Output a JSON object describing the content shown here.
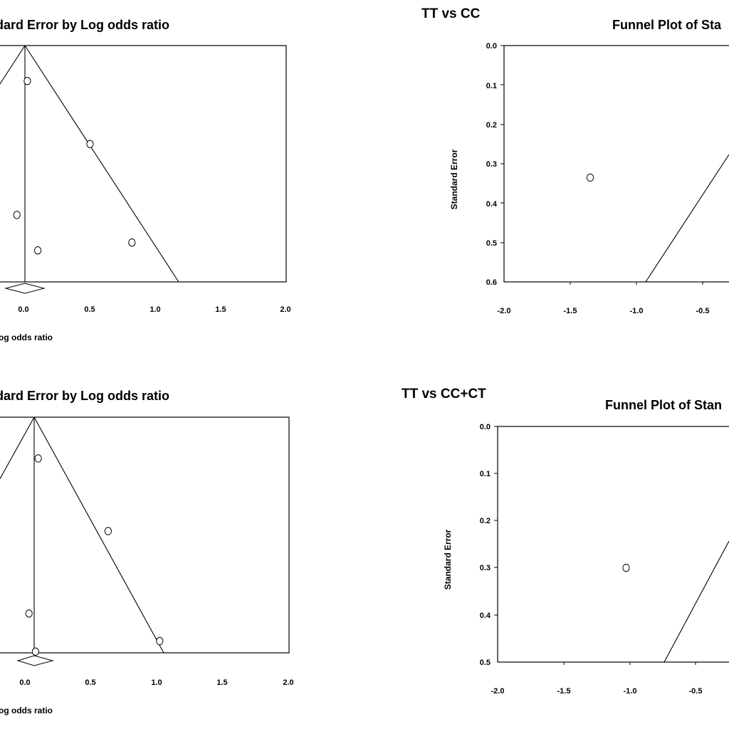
{
  "chart_data": [
    {
      "type": "scatter",
      "title": "dard Error by Log odds ratio",
      "xlabel": "og odds ratio",
      "ylabel": "",
      "xlim": [
        -0.2,
        2.0
      ],
      "ylim": [
        0.6,
        0.0
      ],
      "x_ticks": [
        "0.0",
        "0.5",
        "1.0",
        "1.5",
        "2.0"
      ],
      "y_ticks": [],
      "pooled_log_or": 0.0,
      "points": [
        {
          "x": 0.02,
          "y": 0.09
        },
        {
          "x": 0.5,
          "y": 0.25
        },
        {
          "x": -0.06,
          "y": 0.43
        },
        {
          "x": 0.82,
          "y": 0.5
        },
        {
          "x": 0.1,
          "y": 0.52
        }
      ]
    },
    {
      "type": "scatter",
      "heading": "TT vs CC",
      "title": "Funnel Plot of Sta",
      "xlabel": "",
      "ylabel": "Standard Error",
      "xlim": [
        -2.0,
        -0.26
      ],
      "ylim": [
        0.6,
        0.0
      ],
      "x_ticks": [
        "-2.0",
        "-1.5",
        "-1.0",
        "-0.5"
      ],
      "y_ticks": [
        "0.0",
        "0.1",
        "0.2",
        "0.3",
        "0.4",
        "0.5",
        "0.6"
      ],
      "points": [
        {
          "x": -1.35,
          "y": 0.335
        }
      ]
    },
    {
      "type": "scatter",
      "title": "dard Error by Log odds ratio",
      "xlabel": "og odds ratio",
      "ylabel": "",
      "xlim": [
        -0.2,
        2.0
      ],
      "ylim": [
        0.6,
        0.0
      ],
      "x_ticks": [
        "0.0",
        "0.5",
        "1.0",
        "1.5",
        "2.0"
      ],
      "y_ticks": [],
      "pooled_log_or": 0.07,
      "points": [
        {
          "x": 0.1,
          "y": 0.105
        },
        {
          "x": 0.63,
          "y": 0.29
        },
        {
          "x": 0.03,
          "y": 0.5
        },
        {
          "x": 1.02,
          "y": 0.57
        },
        {
          "x": 0.08,
          "y": 0.597
        }
      ]
    },
    {
      "type": "scatter",
      "heading": "TT vs CC+CT",
      "title": "Funnel Plot of Stan",
      "xlabel": "",
      "ylabel": "Standard Error",
      "xlim": [
        -2.0,
        -0.35
      ],
      "ylim": [
        0.5,
        0.0
      ],
      "x_ticks": [
        "-2.0",
        "-1.5",
        "-1.0",
        "-0.5"
      ],
      "y_ticks": [
        "0.0",
        "0.1",
        "0.2",
        "0.3",
        "0.4",
        "0.5"
      ],
      "points": [
        {
          "x": -1.03,
          "y": 0.3
        }
      ]
    }
  ]
}
